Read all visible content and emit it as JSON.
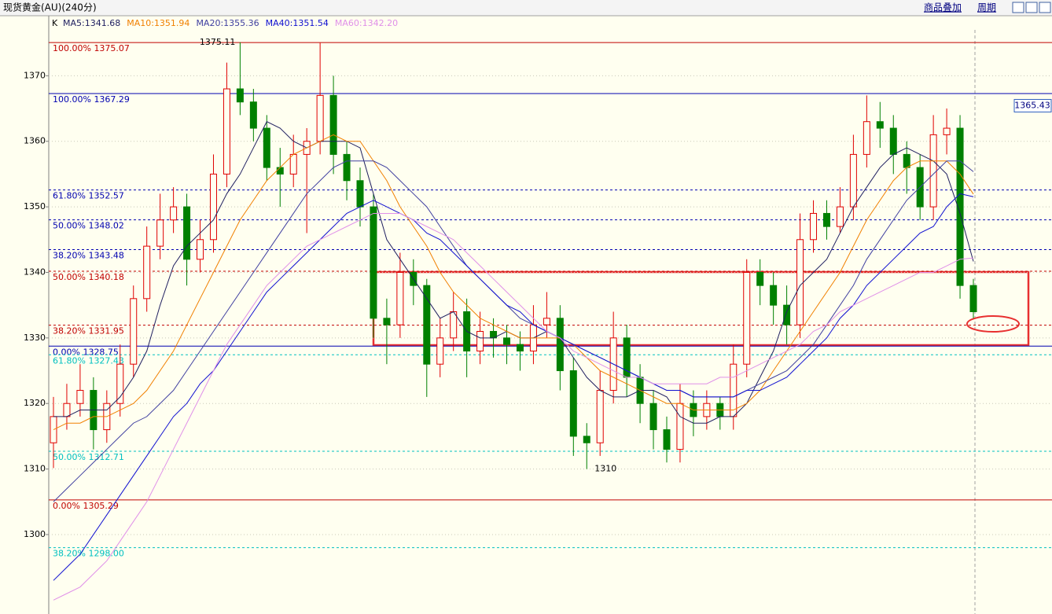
{
  "header": {
    "title": "现货黄金(AU)(240分)",
    "overlay": "商品叠加",
    "period": "周期"
  },
  "chart_data": {
    "type": "candlestick",
    "legend_k": "K",
    "cursor_price": 1365.43,
    "up_color": "#e00000",
    "down_color": "#008000",
    "open": [
      1314,
      1318,
      1320,
      1322,
      1316,
      1320,
      1326,
      1336,
      1344,
      1348,
      1350,
      1342,
      1345,
      1355,
      1368,
      1366,
      1362,
      1356,
      1355,
      1358,
      1360,
      1367,
      1358,
      1354,
      1350,
      1333,
      1332,
      1340,
      1338,
      1326,
      1330,
      1334,
      1328,
      1331,
      1330,
      1329,
      1328,
      1332,
      1333,
      1325,
      1315,
      1314,
      1322,
      1330,
      1324,
      1320,
      1316,
      1313,
      1320,
      1318,
      1320,
      1318,
      1326,
      1340,
      1338,
      1335,
      1332,
      1345,
      1349,
      1347,
      1350,
      1358,
      1363,
      1362,
      1358,
      1356,
      1350,
      1361,
      1362,
      1338
    ],
    "close": [
      1318,
      1320,
      1322,
      1316,
      1320,
      1326,
      1336,
      1344,
      1348,
      1350,
      1342,
      1345,
      1355,
      1368,
      1366,
      1362,
      1356,
      1355,
      1358,
      1360,
      1367,
      1358,
      1354,
      1350,
      1333,
      1332,
      1340,
      1338,
      1326,
      1330,
      1334,
      1328,
      1331,
      1330,
      1329,
      1328,
      1332,
      1333,
      1325,
      1315,
      1314,
      1322,
      1330,
      1324,
      1320,
      1316,
      1313,
      1320,
      1318,
      1320,
      1318,
      1326,
      1340,
      1338,
      1335,
      1332,
      1345,
      1349,
      1347,
      1350,
      1358,
      1363,
      1362,
      1358,
      1356,
      1350,
      1361,
      1362,
      1338,
      1334
    ],
    "high": [
      1321,
      1323,
      1326,
      1324,
      1322,
      1329,
      1338,
      1347,
      1352,
      1353,
      1352,
      1348,
      1358,
      1372,
      1375.11,
      1368,
      1364,
      1359,
      1361,
      1362,
      1375,
      1370,
      1360,
      1356,
      1352,
      1336,
      1343,
      1342,
      1339,
      1333,
      1337,
      1336,
      1334,
      1333,
      1332,
      1331,
      1335,
      1337,
      1335,
      1327,
      1317,
      1325,
      1334,
      1332,
      1326,
      1322,
      1318,
      1323,
      1322,
      1322,
      1321,
      1329,
      1342,
      1342,
      1340,
      1338,
      1349,
      1351,
      1351,
      1353,
      1361,
      1367,
      1366,
      1364,
      1360,
      1358,
      1364,
      1365,
      1364,
      1339
    ],
    "low": [
      1310.14,
      1316,
      1318,
      1313,
      1314,
      1318,
      1324,
      1334,
      1342,
      1346,
      1338,
      1340,
      1343,
      1353,
      1364,
      1360,
      1354,
      1350,
      1353,
      1346,
      1358,
      1355,
      1351,
      1347,
      1330,
      1326,
      1330,
      1335,
      1321,
      1324,
      1328,
      1324,
      1326,
      1327,
      1326,
      1325,
      1326,
      1330,
      1322,
      1312,
      1310,
      1312,
      1320,
      1321,
      1317,
      1313,
      1311,
      1311,
      1315,
      1316,
      1316,
      1316,
      1324,
      1335,
      1332,
      1329,
      1330,
      1343,
      1345,
      1346,
      1348,
      1356,
      1359,
      1355,
      1352,
      1348,
      1348,
      1358,
      1336,
      1333
    ],
    "series": [
      {
        "name": "MA5:1341.68",
        "color": "#202060",
        "values": [
          1318,
          1318,
          1319,
          1319,
          1319,
          1321,
          1324,
          1328,
          1335,
          1341,
          1344,
          1346,
          1348,
          1352,
          1355,
          1359,
          1363,
          1362,
          1360,
          1359,
          1360,
          1360,
          1360,
          1359,
          1352,
          1345,
          1342,
          1339,
          1336,
          1333,
          1334,
          1331,
          1330,
          1330,
          1331,
          1330,
          1330,
          1331,
          1330,
          1327,
          1324,
          1322,
          1321,
          1321,
          1322,
          1322,
          1321,
          1318,
          1317,
          1317,
          1318,
          1318,
          1320,
          1324,
          1328,
          1334,
          1338,
          1340,
          1342,
          1346,
          1350,
          1353,
          1356,
          1358,
          1359,
          1358,
          1357,
          1355,
          1349,
          1341.68
        ]
      },
      {
        "name": "MA10:1351.94",
        "color": "#f08000",
        "values": [
          1316,
          1317,
          1317,
          1318,
          1318,
          1319,
          1320,
          1322,
          1325,
          1328,
          1332,
          1336,
          1340,
          1344,
          1348,
          1351,
          1354,
          1356,
          1358,
          1359,
          1360,
          1361,
          1360,
          1360,
          1357,
          1354,
          1350,
          1347,
          1344,
          1340,
          1337,
          1335,
          1333,
          1332,
          1331,
          1330,
          1330,
          1330,
          1330,
          1329,
          1327,
          1325,
          1324,
          1323,
          1322,
          1321,
          1320,
          1320,
          1319,
          1319,
          1319,
          1319,
          1320,
          1322,
          1325,
          1328,
          1331,
          1334,
          1337,
          1340,
          1344,
          1348,
          1351,
          1354,
          1356,
          1357,
          1357,
          1357,
          1355,
          1351.94
        ]
      },
      {
        "name": "MA20:1355.36",
        "color": "#4040a0",
        "values": [
          1305,
          1307,
          1309,
          1311,
          1313,
          1315,
          1317,
          1318,
          1320,
          1322,
          1325,
          1328,
          1331,
          1334,
          1337,
          1340,
          1343,
          1346,
          1349,
          1352,
          1354,
          1356,
          1357,
          1357,
          1357,
          1356,
          1354,
          1352,
          1350,
          1347,
          1344,
          1341,
          1339,
          1337,
          1335,
          1333,
          1332,
          1331,
          1330,
          1329,
          1328,
          1327,
          1326,
          1325,
          1324,
          1323,
          1322,
          1322,
          1321,
          1321,
          1321,
          1321,
          1322,
          1323,
          1324,
          1325,
          1327,
          1329,
          1332,
          1335,
          1338,
          1342,
          1345,
          1348,
          1351,
          1353,
          1355,
          1357,
          1357,
          1355.36
        ]
      },
      {
        "name": "MA40:1351.54",
        "color": "#1010d0",
        "values": [
          1293,
          1295,
          1297,
          1300,
          1303,
          1306,
          1309,
          1312,
          1315,
          1318,
          1320,
          1323,
          1325,
          1328,
          1331,
          1334,
          1337,
          1339,
          1341,
          1343,
          1345,
          1347,
          1349,
          1350,
          1351,
          1350,
          1349,
          1348,
          1346,
          1345,
          1343,
          1341,
          1339,
          1337,
          1335,
          1334,
          1332,
          1331,
          1330,
          1329,
          1328,
          1327,
          1326,
          1325,
          1324,
          1323,
          1322,
          1322,
          1321,
          1321,
          1321,
          1321,
          1322,
          1322,
          1323,
          1324,
          1326,
          1328,
          1330,
          1333,
          1335,
          1338,
          1340,
          1342,
          1344,
          1346,
          1347,
          1350,
          1352,
          1351.54
        ]
      },
      {
        "name": "MA60:1342.20",
        "color": "#e090e8",
        "values": [
          1290,
          1291,
          1292,
          1294,
          1296,
          1299,
          1302,
          1305,
          1309,
          1313,
          1317,
          1321,
          1325,
          1329,
          1332,
          1335,
          1338,
          1340,
          1342,
          1344,
          1345,
          1346,
          1347,
          1348,
          1349,
          1349,
          1349,
          1348,
          1347,
          1346,
          1345,
          1343,
          1341,
          1339,
          1337,
          1335,
          1333,
          1331,
          1330,
          1328,
          1327,
          1326,
          1325,
          1324,
          1324,
          1323,
          1323,
          1323,
          1323,
          1323,
          1324,
          1324,
          1325,
          1326,
          1327,
          1328,
          1329,
          1331,
          1332,
          1334,
          1335,
          1336,
          1337,
          1338,
          1339,
          1340,
          1340,
          1341,
          1342,
          1342.2
        ]
      }
    ],
    "levels": [
      {
        "label": "100.00% 1375.07",
        "value": 1375.07,
        "color": "#c00000",
        "dashed": false
      },
      {
        "label": "100.00% 1367.29",
        "value": 1367.29,
        "color": "#0000b0",
        "dashed": false
      },
      {
        "label": "61.80% 1352.57",
        "value": 1352.57,
        "color": "#0000b0",
        "dashed": true
      },
      {
        "label": "50.00% 1348.02",
        "value": 1348.02,
        "color": "#0000b0",
        "dashed": true
      },
      {
        "label": "38.20% 1343.48",
        "value": 1343.48,
        "color": "#0000b0",
        "dashed": true
      },
      {
        "label": "50.00% 1340.18",
        "value": 1340.18,
        "color": "#c00000",
        "dashed": true
      },
      {
        "label": "38.20% 1331.95",
        "value": 1331.95,
        "color": "#c00000",
        "dashed": true
      },
      {
        "label": "0.00% 1328.75",
        "value": 1328.75,
        "color": "#0000b0",
        "dashed": false
      },
      {
        "label": "61.80% 1327.43",
        "value": 1327.43,
        "color": "#00c0c0",
        "dashed": true
      },
      {
        "label": "50.00% 1312.71",
        "value": 1312.71,
        "color": "#00c0c0",
        "dashed": true
      },
      {
        "label": "0.00% 1305.29",
        "value": 1305.29,
        "color": "#c00000",
        "dashed": false
      },
      {
        "label": "38.20% 1298.00",
        "value": 1298.0,
        "color": "#00c0c0",
        "dashed": true
      }
    ],
    "ylim": [
      1289.2,
      1377
    ],
    "yticks": [
      1300,
      1310,
      1320,
      1330,
      1340,
      1350,
      1360,
      1370
    ],
    "grid": true
  }
}
